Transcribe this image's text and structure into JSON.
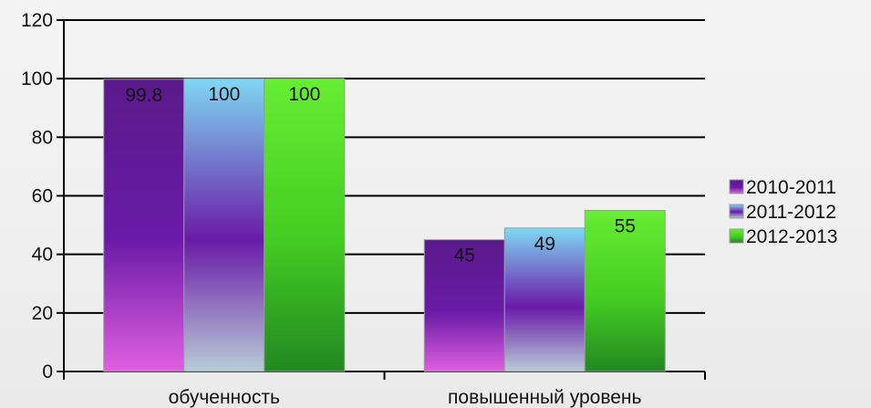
{
  "chart_data": {
    "type": "bar",
    "categories": [
      "обученность",
      "повышенный уровень"
    ],
    "series": [
      {
        "name": "2010-2011",
        "values": [
          99.8,
          45
        ],
        "color_top": "#5a1a8a",
        "color_mid": "#6a1aa8",
        "color_bottom": "#e060e0"
      },
      {
        "name": "2011-2012",
        "values": [
          100,
          49
        ],
        "color_top": "#7fd8f4",
        "color_mid": "#6a1aa8",
        "color_bottom": "#b8ccd8"
      },
      {
        "name": "2012-2013",
        "values": [
          100,
          55
        ],
        "color_top": "#66ee33",
        "color_mid": "#44cc22",
        "color_bottom": "#228822"
      }
    ],
    "data_labels": [
      [
        "99.8",
        "45"
      ],
      [
        "100",
        "49"
      ],
      [
        "100",
        "55"
      ]
    ],
    "ylim": [
      0,
      120
    ],
    "yticks": [
      0,
      20,
      40,
      60,
      80,
      100,
      120
    ],
    "grid": true,
    "legend_position": "right"
  }
}
